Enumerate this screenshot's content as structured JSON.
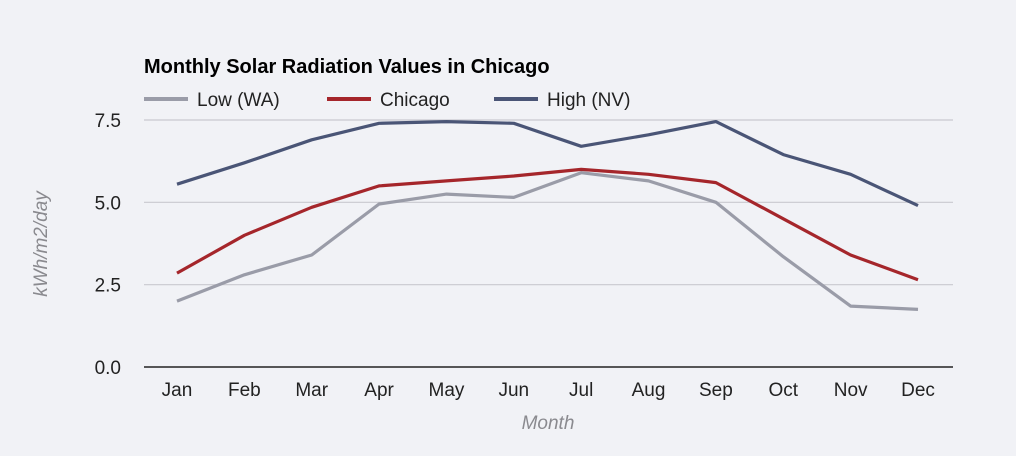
{
  "chart_data": {
    "type": "line",
    "title": "Monthly Solar Radiation Values in Chicago",
    "xlabel": "Month",
    "ylabel": "kWh/m2/day",
    "categories": [
      "Jan",
      "Feb",
      "Mar",
      "Apr",
      "May",
      "Jun",
      "Jul",
      "Aug",
      "Sep",
      "Oct",
      "Nov",
      "Dec"
    ],
    "ylim": [
      0,
      8
    ],
    "yticks": [
      0,
      2.5,
      5,
      7.5
    ],
    "ytick_labels": [
      "0.0",
      "2.5",
      "5.0",
      "7.5"
    ],
    "grid": true,
    "legend_position": "top-left",
    "series": [
      {
        "name": "Low (WA)",
        "color": "#9a9ca8",
        "values": [
          2.0,
          2.8,
          3.4,
          4.95,
          5.25,
          5.15,
          5.9,
          5.65,
          5.0,
          3.35,
          1.85,
          1.75
        ]
      },
      {
        "name": "Chicago",
        "color": "#a5262b",
        "values": [
          2.85,
          4.0,
          4.85,
          5.5,
          5.65,
          5.8,
          6.0,
          5.85,
          5.6,
          4.5,
          3.4,
          2.65
        ]
      },
      {
        "name": "High (NV)",
        "color": "#4a5576",
        "values": [
          5.55,
          6.2,
          6.9,
          7.4,
          7.45,
          7.4,
          6.7,
          7.05,
          7.45,
          6.45,
          5.85,
          4.9
        ]
      }
    ]
  }
}
